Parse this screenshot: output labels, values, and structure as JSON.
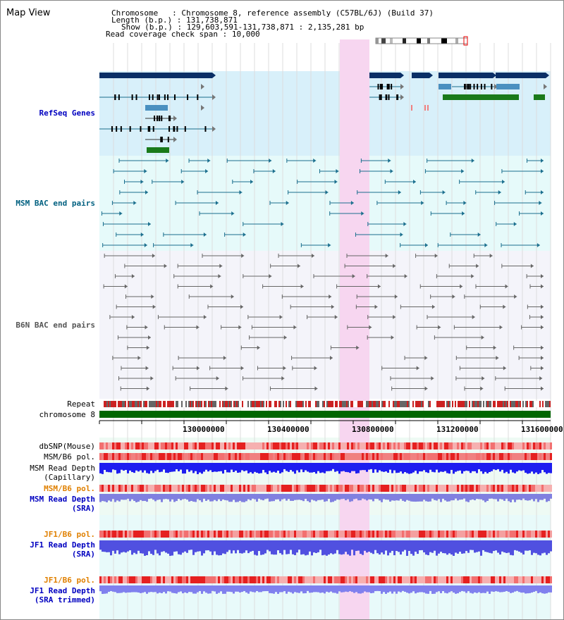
{
  "window": {
    "title": "Map View"
  },
  "header": {
    "chromosome_label": "Chromosome",
    "chromosome_value": "Chromosome 8, reference assembly (C57BL/6J) (Build 37)",
    "length_label": "Length (b.p.)",
    "length_value": "131,738,871",
    "show_label": "Show (b.p.)",
    "show_value": "129,603,591-131,738,871 : 2,135,281 bp",
    "coverage_label": "Read coverage check span",
    "coverage_value": "10,000"
  },
  "tracks": {
    "refseq": "RefSeq Genes",
    "msm_bac": "MSM BAC end pairs",
    "b6n_bac": "B6N BAC end pairs",
    "repeat": "Repeat",
    "chromosome": "chromosome 8",
    "dbsnp": "dbSNP(Mouse)",
    "msm_b6_pol_1": "MSM/B6 pol.",
    "msm_depth_cap_1": "MSM Read Depth",
    "msm_depth_cap_2": "(Capillary)",
    "msm_b6_pol_2": "MSM/B6 pol.",
    "msm_depth_sra_1": "MSM Read Depth",
    "msm_depth_sra_2": "(SRA)",
    "jf1_b6_pol_1": "JF1/B6 pol.",
    "jf1_depth_1": "JF1 Read Depth",
    "jf1_depth_2": "(SRA)",
    "jf1_b6_pol_2": "JF1/B6 pol.",
    "jf1_trim_1": "JF1 Read Depth",
    "jf1_trim_2": "(SRA trimmed)"
  },
  "axis": {
    "ticks": [
      "130000000",
      "130400000",
      "130800000",
      "131200000",
      "131600000"
    ]
  },
  "colors": {
    "refseq_bg": "#d8f0fa",
    "msm_bg": "#e6fafa",
    "b6n_bg": "#f4f4fa",
    "highlight": "#f7d6f0",
    "gene_dark": "#0a2f66",
    "gene_green": "#1a7a1a",
    "gene_mid": "#4a90c0",
    "chromosome_bar": "#006600"
  }
}
